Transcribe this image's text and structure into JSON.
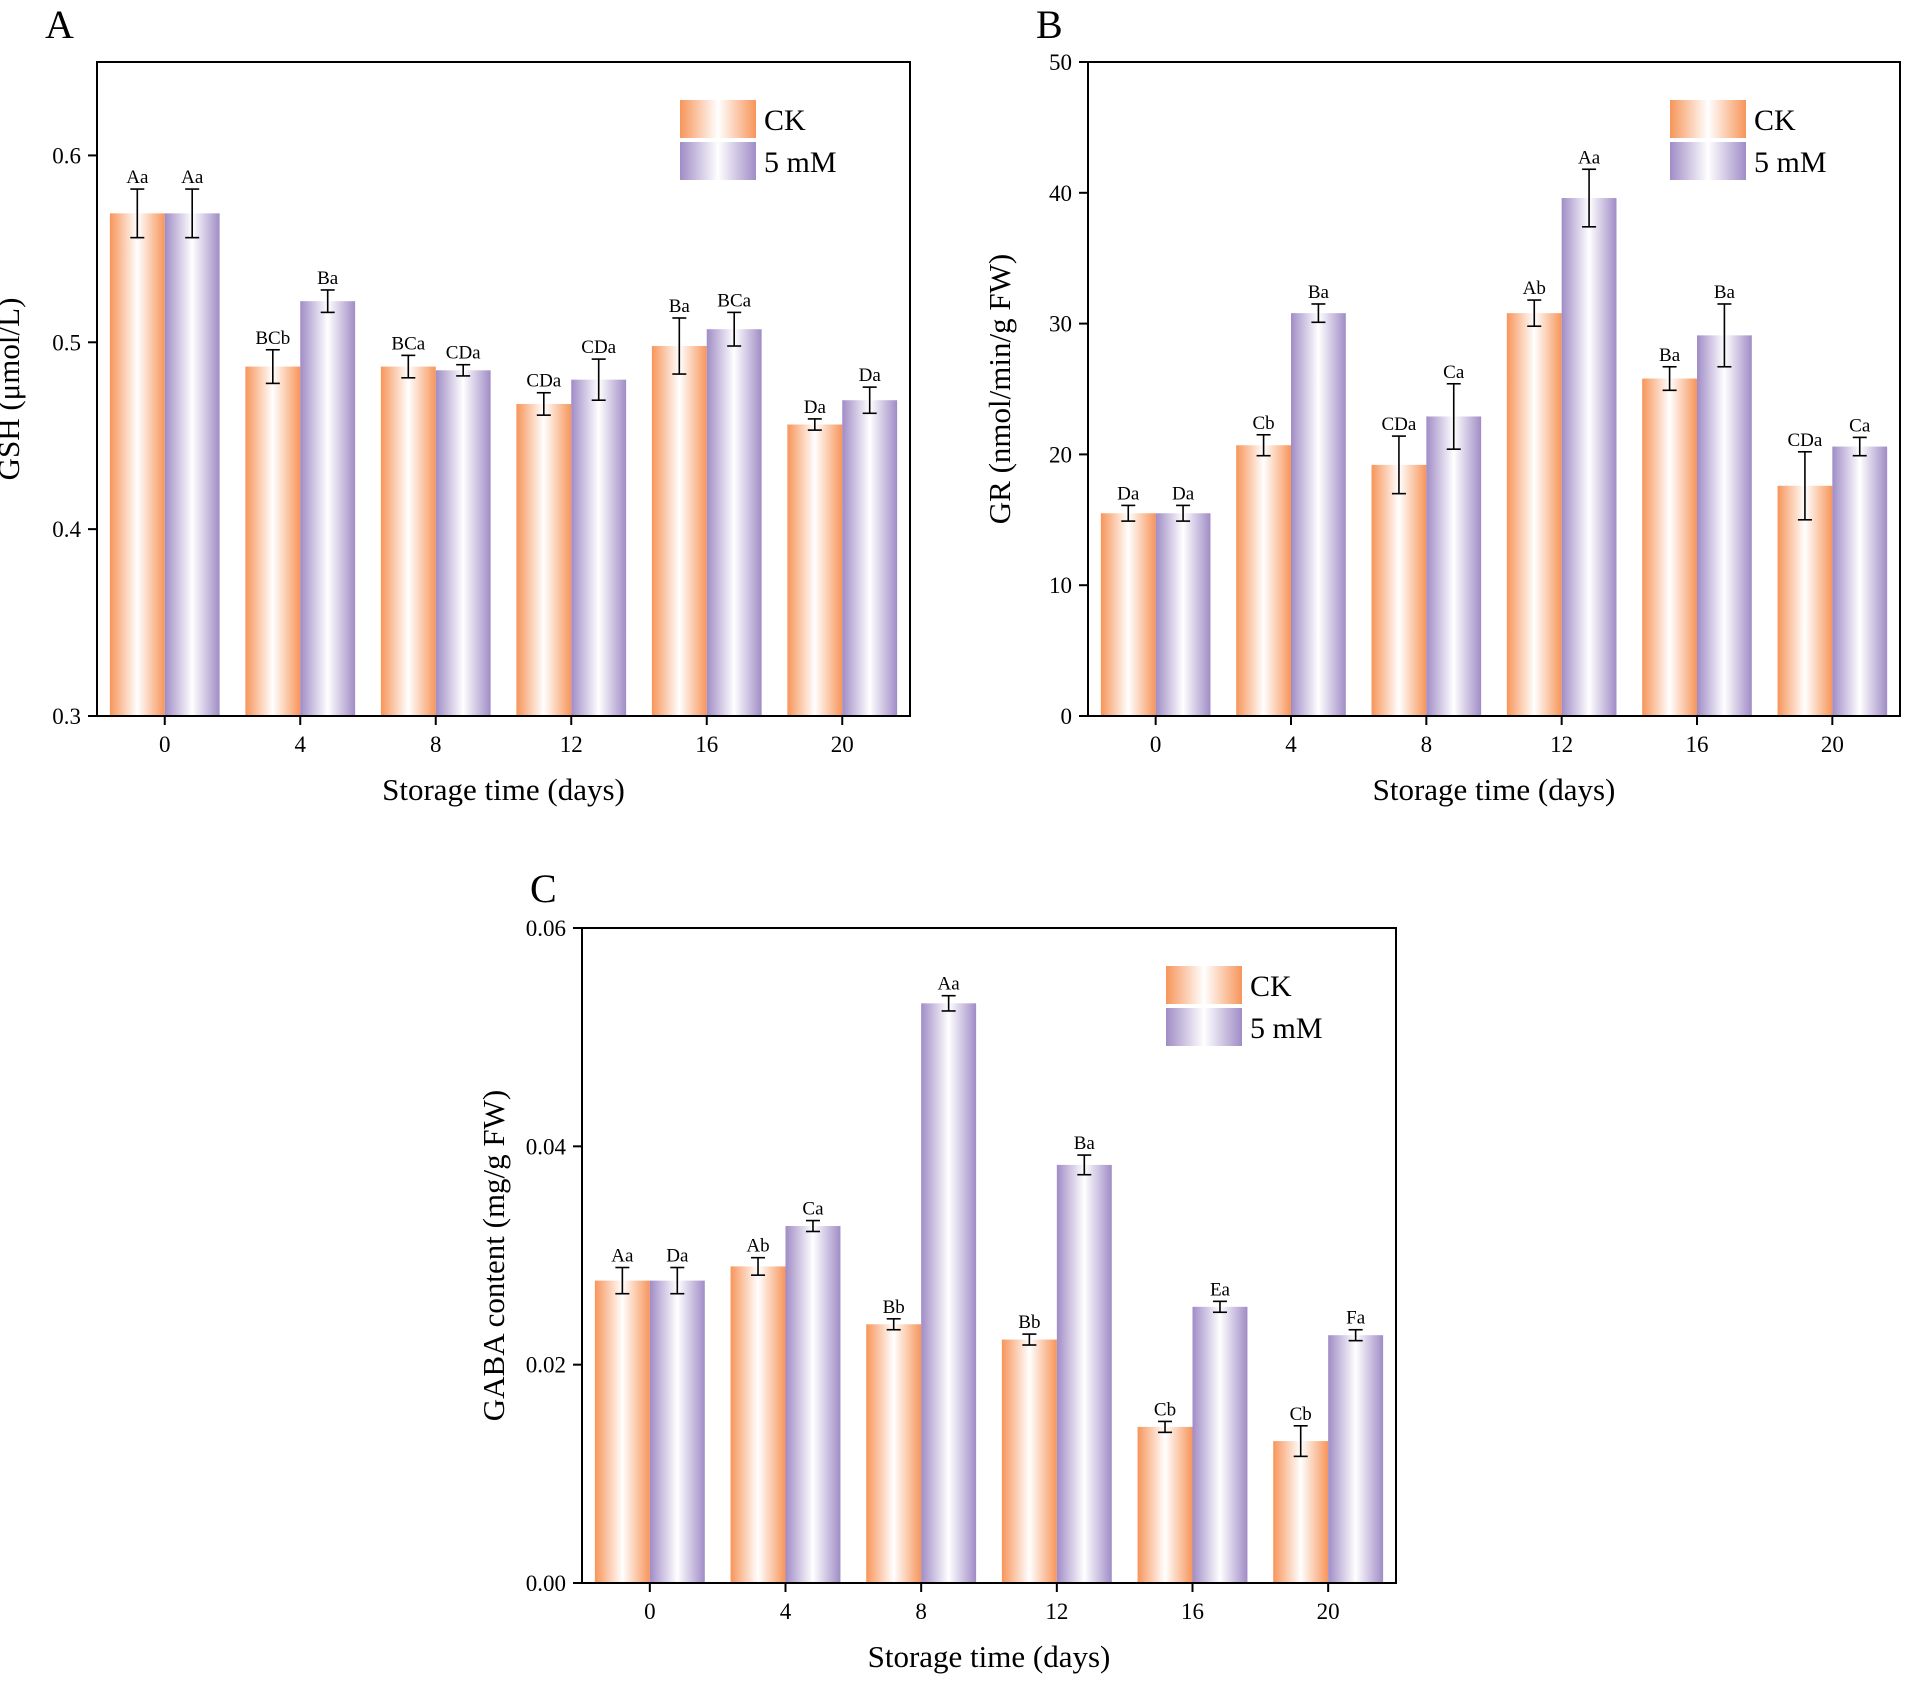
{
  "figure": {
    "colors": {
      "ck": "#f7955a",
      "mm5": "#a08cc6",
      "mid": "#ffffff",
      "axis": "#000000"
    },
    "legend": {
      "ck_label": "CK",
      "mm5_label": "5 mM"
    }
  },
  "chart_data": [
    {
      "panel": "A",
      "type": "bar",
      "ylabel": "GSH (μmol/L)",
      "xlabel": "Storage time (days)",
      "ylim": [
        0.3,
        0.65
      ],
      "yticks": [
        "0.3",
        "0.4",
        "0.5",
        "0.6"
      ],
      "categories": [
        "0",
        "4",
        "8",
        "12",
        "16",
        "20"
      ],
      "legend_position": "top-right",
      "series": [
        {
          "name": "CK",
          "values": [
            0.569,
            0.487,
            0.487,
            0.467,
            0.498,
            0.456
          ],
          "errors": [
            0.013,
            0.009,
            0.006,
            0.006,
            0.015,
            0.003
          ],
          "labels": [
            "Aa",
            "BCb",
            "BCa",
            "CDa",
            "Ba",
            "Da"
          ]
        },
        {
          "name": "5 mM",
          "values": [
            0.569,
            0.522,
            0.485,
            0.48,
            0.507,
            0.469
          ],
          "errors": [
            0.013,
            0.006,
            0.003,
            0.011,
            0.009,
            0.007
          ],
          "labels": [
            "Aa",
            "Ba",
            "CDa",
            "CDa",
            "BCa",
            "Da"
          ]
        }
      ]
    },
    {
      "panel": "B",
      "type": "bar",
      "ylabel": "GR (nmol/min/g FW)",
      "xlabel": "Storage time (days)",
      "ylim": [
        0,
        50
      ],
      "yticks": [
        "0",
        "10",
        "20",
        "30",
        "40",
        "50"
      ],
      "categories": [
        "0",
        "4",
        "8",
        "12",
        "16",
        "20"
      ],
      "legend_position": "top-right",
      "series": [
        {
          "name": "CK",
          "values": [
            15.5,
            20.7,
            19.2,
            30.8,
            25.8,
            17.6
          ],
          "errors": [
            0.6,
            0.8,
            2.2,
            1.0,
            0.9,
            2.6
          ],
          "labels": [
            "Da",
            "Cb",
            "CDa",
            "Ab",
            "Ba",
            "CDa"
          ]
        },
        {
          "name": "5 mM",
          "values": [
            15.5,
            30.8,
            22.9,
            39.6,
            29.1,
            20.6
          ],
          "errors": [
            0.6,
            0.7,
            2.5,
            2.2,
            2.4,
            0.7
          ],
          "labels": [
            "Da",
            "Ba",
            "Ca",
            "Aa",
            "Ba",
            "Ca"
          ]
        }
      ]
    },
    {
      "panel": "C",
      "type": "bar",
      "ylabel": "GABA content (mg/g FW)",
      "xlabel": "Storage time (days)",
      "ylim": [
        0,
        0.06
      ],
      "yticks": [
        "0.00",
        "0.02",
        "0.04",
        "0.06"
      ],
      "categories": [
        "0",
        "4",
        "8",
        "12",
        "16",
        "20"
      ],
      "legend_position": "top-right",
      "series": [
        {
          "name": "CK",
          "values": [
            0.0277,
            0.029,
            0.0237,
            0.0223,
            0.0143,
            0.013
          ],
          "errors": [
            0.0012,
            0.0008,
            0.0005,
            0.0005,
            0.0005,
            0.0014
          ],
          "labels": [
            "Aa",
            "Ab",
            "Bb",
            "Bb",
            "Cb",
            "Cb"
          ]
        },
        {
          "name": "5 mM",
          "values": [
            0.0277,
            0.0327,
            0.0531,
            0.0383,
            0.0253,
            0.0227
          ],
          "errors": [
            0.0012,
            0.0005,
            0.0007,
            0.0009,
            0.0005,
            0.0005
          ],
          "labels": [
            "Da",
            "Ca",
            "Aa",
            "Ba",
            "Ea",
            "Fa"
          ]
        }
      ]
    }
  ]
}
